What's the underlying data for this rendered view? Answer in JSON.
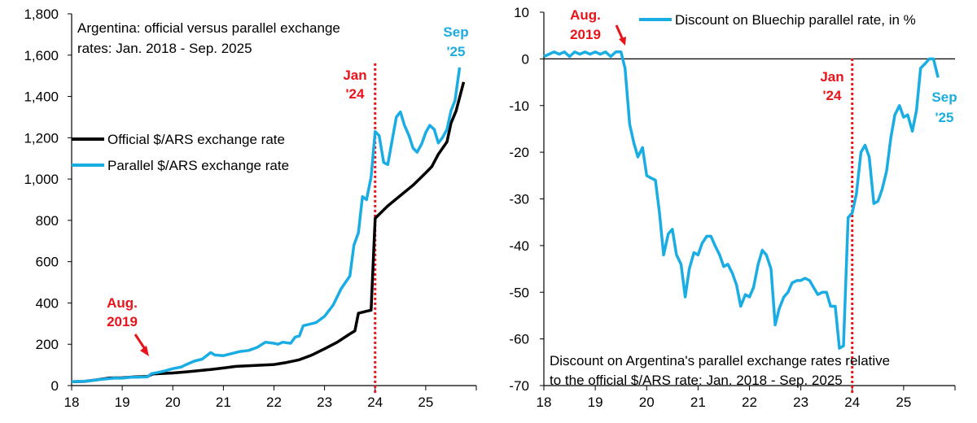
{
  "colors": {
    "official": "#000000",
    "parallel": "#1aade4",
    "marker": "#e8141a",
    "axis": "#000000"
  },
  "chart_data": [
    {
      "type": "line",
      "title": "Argentina: official versus parallel exchange rates: Jan. 2018 - Sep. 2025",
      "title_lines": [
        "Argentina: official versus parallel exchange",
        "rates: Jan. 2018 - Sep. 2025"
      ],
      "ylim": [
        0,
        1800
      ],
      "y_ticks": [
        0,
        200,
        400,
        600,
        800,
        1000,
        1200,
        1400,
        1600,
        1800
      ],
      "y_tick_labels": [
        "0",
        "200",
        "400",
        "600",
        "800",
        "1,000",
        "1,200",
        "1,400",
        "1,600",
        "1,800"
      ],
      "xlim": [
        18,
        26
      ],
      "x_ticks": [
        18,
        19,
        20,
        21,
        22,
        23,
        24,
        25
      ],
      "x_tick_labels": [
        "18",
        "19",
        "20",
        "21",
        "22",
        "23",
        "24",
        "25"
      ],
      "legend": [
        "Official $/ARS exchange rate",
        "Parallel $/ARS exchange rate"
      ],
      "vline_x": 24,
      "annotations": {
        "jan24": [
          "Jan",
          "'24"
        ],
        "aug2019": [
          "Aug.",
          "2019"
        ],
        "sep25": [
          "Sep",
          "'25"
        ]
      },
      "series": [
        {
          "name": "Official $/ARS exchange rate",
          "color_key": "official",
          "points": [
            [
              18,
              19
            ],
            [
              18.25,
              20
            ],
            [
              18.5,
              28
            ],
            [
              18.75,
              37
            ],
            [
              19,
              38
            ],
            [
              19.25,
              42
            ],
            [
              19.5,
              44
            ],
            [
              19.6,
              56
            ],
            [
              19.75,
              58
            ],
            [
              20,
              61
            ],
            [
              20.25,
              66
            ],
            [
              20.5,
              72
            ],
            [
              20.75,
              78
            ],
            [
              21,
              85
            ],
            [
              21.25,
              93
            ],
            [
              21.5,
              96
            ],
            [
              21.75,
              99
            ],
            [
              22,
              102
            ],
            [
              22.25,
              112
            ],
            [
              22.5,
              125
            ],
            [
              22.75,
              148
            ],
            [
              23,
              178
            ],
            [
              23.25,
              210
            ],
            [
              23.5,
              250
            ],
            [
              23.6,
              265
            ],
            [
              23.67,
              350
            ],
            [
              23.83,
              360
            ],
            [
              23.92,
              365
            ],
            [
              24,
              810
            ],
            [
              24.25,
              870
            ],
            [
              24.5,
              920
            ],
            [
              24.75,
              970
            ],
            [
              25,
              1030
            ],
            [
              25.12,
              1060
            ],
            [
              25.25,
              1120
            ],
            [
              25.42,
              1180
            ],
            [
              25.5,
              1270
            ],
            [
              25.6,
              1330
            ],
            [
              25.75,
              1470
            ]
          ]
        },
        {
          "name": "Parallel $/ARS exchange rate",
          "color_key": "parallel",
          "points": [
            [
              18,
              19
            ],
            [
              18.17,
              20
            ],
            [
              18.33,
              22
            ],
            [
              18.5,
              28
            ],
            [
              18.67,
              32
            ],
            [
              18.83,
              36
            ],
            [
              19,
              36
            ],
            [
              19.17,
              40
            ],
            [
              19.33,
              41
            ],
            [
              19.5,
              42
            ],
            [
              19.58,
              58
            ],
            [
              19.67,
              62
            ],
            [
              19.83,
              70
            ],
            [
              20,
              82
            ],
            [
              20.17,
              90
            ],
            [
              20.25,
              100
            ],
            [
              20.42,
              118
            ],
            [
              20.58,
              128
            ],
            [
              20.75,
              160
            ],
            [
              20.83,
              148
            ],
            [
              21,
              145
            ],
            [
              21.17,
              155
            ],
            [
              21.33,
              165
            ],
            [
              21.5,
              170
            ],
            [
              21.67,
              185
            ],
            [
              21.83,
              210
            ],
            [
              22,
              205
            ],
            [
              22.08,
              200
            ],
            [
              22.17,
              210
            ],
            [
              22.33,
              205
            ],
            [
              22.42,
              235
            ],
            [
              22.5,
              240
            ],
            [
              22.58,
              290
            ],
            [
              22.67,
              295
            ],
            [
              22.83,
              305
            ],
            [
              23,
              335
            ],
            [
              23.17,
              390
            ],
            [
              23.33,
              470
            ],
            [
              23.5,
              530
            ],
            [
              23.58,
              680
            ],
            [
              23.67,
              740
            ],
            [
              23.75,
              915
            ],
            [
              23.83,
              900
            ],
            [
              23.92,
              1010
            ],
            [
              24,
              1230
            ],
            [
              24.08,
              1210
            ],
            [
              24.17,
              1080
            ],
            [
              24.25,
              1070
            ],
            [
              24.33,
              1180
            ],
            [
              24.42,
              1300
            ],
            [
              24.5,
              1325
            ],
            [
              24.58,
              1260
            ],
            [
              24.67,
              1210
            ],
            [
              24.75,
              1150
            ],
            [
              24.83,
              1130
            ],
            [
              24.92,
              1170
            ],
            [
              25,
              1225
            ],
            [
              25.08,
              1260
            ],
            [
              25.17,
              1240
            ],
            [
              25.25,
              1175
            ],
            [
              25.33,
              1200
            ],
            [
              25.42,
              1240
            ],
            [
              25.5,
              1330
            ],
            [
              25.58,
              1380
            ],
            [
              25.67,
              1540
            ]
          ]
        }
      ]
    },
    {
      "type": "line",
      "title": "Discount on Argentina's parallel exchange rates relative to the official $/ARS rate: Jan. 2018 - Sep. 2025",
      "title_lines": [
        "Discount on Argentina's parallel exchange rates relative",
        "to the official $/ARS rate: Jan. 2018 - Sep. 2025"
      ],
      "ylim": [
        -70,
        10
      ],
      "y_ticks": [
        -70,
        -60,
        -50,
        -40,
        -30,
        -20,
        -10,
        0,
        10
      ],
      "y_tick_labels": [
        "-70",
        "-60",
        "-50",
        "-40",
        "-30",
        "-20",
        "-10",
        "0",
        "10"
      ],
      "xlim": [
        18,
        26
      ],
      "x_ticks": [
        18,
        19,
        20,
        21,
        22,
        23,
        24,
        25
      ],
      "x_tick_labels": [
        "18",
        "19",
        "20",
        "21",
        "22",
        "23",
        "24",
        "25"
      ],
      "legend": [
        "Discount on Bluechip parallel rate, in %"
      ],
      "vline_x": 24,
      "annotations": {
        "jan24": [
          "Jan",
          "'24"
        ],
        "aug2019": [
          "Aug.",
          "2019"
        ],
        "sep25": [
          "Sep",
          "'25"
        ]
      },
      "series": [
        {
          "name": "Discount on Bluechip parallel rate, in %",
          "color_key": "parallel",
          "points": [
            [
              18,
              0.5
            ],
            [
              18.1,
              1
            ],
            [
              18.2,
              1.5
            ],
            [
              18.3,
              1
            ],
            [
              18.4,
              1.5
            ],
            [
              18.5,
              0.5
            ],
            [
              18.6,
              1.5
            ],
            [
              18.7,
              1
            ],
            [
              18.8,
              1.5
            ],
            [
              18.9,
              1
            ],
            [
              19,
              1.5
            ],
            [
              19.1,
              1
            ],
            [
              19.2,
              1.5
            ],
            [
              19.3,
              0.5
            ],
            [
              19.4,
              1.5
            ],
            [
              19.5,
              1.5
            ],
            [
              19.58,
              -2
            ],
            [
              19.67,
              -14
            ],
            [
              19.75,
              -18
            ],
            [
              19.83,
              -21
            ],
            [
              19.92,
              -19
            ],
            [
              20,
              -25
            ],
            [
              20.08,
              -25.5
            ],
            [
              20.17,
              -26
            ],
            [
              20.25,
              -33
            ],
            [
              20.33,
              -42
            ],
            [
              20.42,
              -37.5
            ],
            [
              20.5,
              -36.5
            ],
            [
              20.58,
              -42
            ],
            [
              20.67,
              -44
            ],
            [
              20.75,
              -51
            ],
            [
              20.83,
              -45
            ],
            [
              20.92,
              -41.5
            ],
            [
              21,
              -42
            ],
            [
              21.08,
              -39.5
            ],
            [
              21.17,
              -38
            ],
            [
              21.25,
              -38
            ],
            [
              21.33,
              -40
            ],
            [
              21.42,
              -42
            ],
            [
              21.5,
              -44.5
            ],
            [
              21.58,
              -44
            ],
            [
              21.67,
              -46
            ],
            [
              21.75,
              -48.5
            ],
            [
              21.83,
              -53
            ],
            [
              21.92,
              -50.5
            ],
            [
              22,
              -51
            ],
            [
              22.08,
              -49
            ],
            [
              22.17,
              -44
            ],
            [
              22.25,
              -41
            ],
            [
              22.33,
              -42
            ],
            [
              22.42,
              -45
            ],
            [
              22.5,
              -57
            ],
            [
              22.58,
              -53.5
            ],
            [
              22.67,
              -51
            ],
            [
              22.75,
              -50
            ],
            [
              22.83,
              -48
            ],
            [
              22.92,
              -47.5
            ],
            [
              23,
              -47.5
            ],
            [
              23.08,
              -47
            ],
            [
              23.17,
              -47.5
            ],
            [
              23.25,
              -49
            ],
            [
              23.33,
              -50.5
            ],
            [
              23.42,
              -50
            ],
            [
              23.5,
              -50
            ],
            [
              23.58,
              -53
            ],
            [
              23.67,
              -53
            ],
            [
              23.75,
              -62
            ],
            [
              23.83,
              -61.5
            ],
            [
              23.92,
              -34
            ],
            [
              24,
              -33
            ],
            [
              24.08,
              -29
            ],
            [
              24.17,
              -20
            ],
            [
              24.25,
              -18.5
            ],
            [
              24.33,
              -21
            ],
            [
              24.42,
              -31
            ],
            [
              24.5,
              -30.5
            ],
            [
              24.58,
              -28
            ],
            [
              24.67,
              -24
            ],
            [
              24.75,
              -17
            ],
            [
              24.83,
              -12
            ],
            [
              24.92,
              -10
            ],
            [
              25,
              -12.5
            ],
            [
              25.08,
              -12
            ],
            [
              25.17,
              -15.5
            ],
            [
              25.25,
              -11
            ],
            [
              25.33,
              -2
            ],
            [
              25.42,
              -1
            ],
            [
              25.5,
              0
            ],
            [
              25.58,
              0
            ],
            [
              25.67,
              -4
            ]
          ]
        }
      ]
    }
  ]
}
